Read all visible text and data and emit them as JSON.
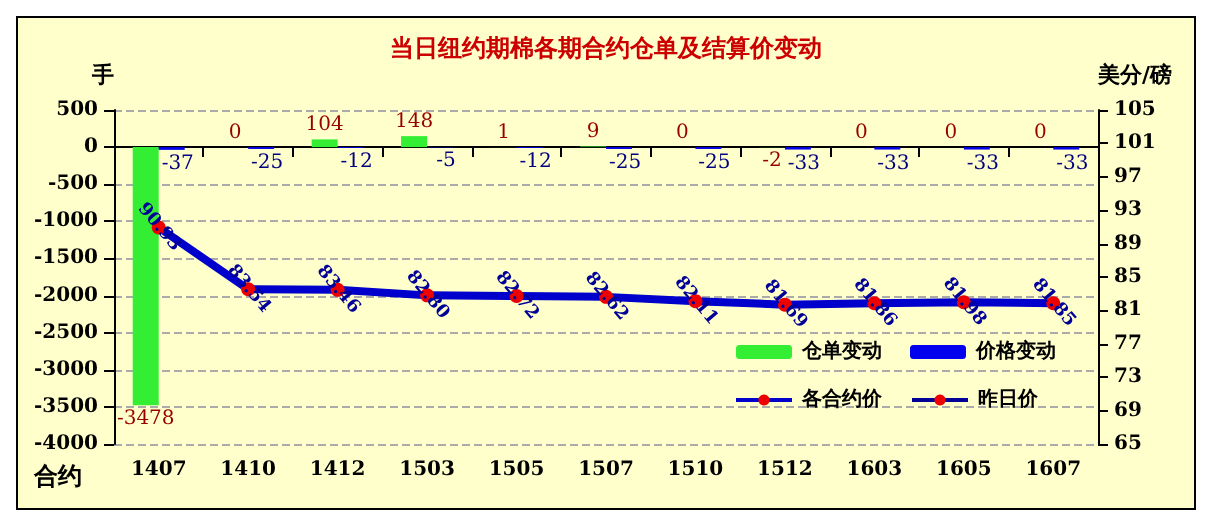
{
  "chart_data": {
    "type": "bar",
    "title": "当日纽约期棉各期合约仓单及结算价变动",
    "xlabel": "合约",
    "ylabel": "手",
    "y2label": "美分/磅",
    "categories": [
      "1407",
      "1410",
      "1412",
      "1503",
      "1505",
      "1507",
      "1510",
      "1512",
      "1603",
      "1605",
      "1607"
    ],
    "series": [
      {
        "name": "仓单变动",
        "color": "#33ee33",
        "values": [
          -3478,
          0,
          104,
          148,
          1,
          9,
          0,
          -2,
          0,
          0,
          0
        ],
        "value_labels": [
          "-3478",
          "0",
          "104",
          "148",
          "1",
          "9",
          "0",
          "-2",
          "0",
          "0",
          "0"
        ]
      },
      {
        "name": "价格变动",
        "color": "#0000ee",
        "values": [
          -37,
          -25,
          -12,
          -5,
          -12,
          -25,
          -25,
          -33,
          -33,
          -33,
          -33
        ],
        "value_labels": [
          "-37",
          "-25",
          "-12",
          "-5",
          "-12",
          "-25",
          "-25",
          "-33",
          "-33",
          "-33",
          "-33"
        ]
      },
      {
        "name": "各合约价",
        "type": "line",
        "axis": "y2",
        "color": "#0000cc",
        "marker": "circle",
        "values": [
          90.93,
          83.54,
          83.46,
          82.8,
          82.72,
          82.62,
          82.11,
          81.69,
          81.86,
          81.98,
          81.85
        ],
        "value_labels": [
          "90.93",
          "83.54",
          "83.46",
          "82.80",
          "82.72",
          "82.62",
          "82.11",
          "81.69",
          "81.86",
          "81.98",
          "81.85"
        ]
      },
      {
        "name": "昨日价",
        "type": "line",
        "axis": "y2",
        "color": "#000099",
        "marker": "circle",
        "values": [
          null,
          null,
          null,
          null,
          null,
          null,
          null,
          null,
          null,
          null,
          null
        ]
      }
    ],
    "ylim": [
      -4000,
      500
    ],
    "yticks": [
      -4000,
      -3500,
      -3000,
      -2500,
      -2000,
      -1500,
      -1000,
      -500,
      0,
      500
    ],
    "y2lim": [
      65,
      105
    ],
    "y2ticks": [
      65,
      69,
      73,
      77,
      81,
      85,
      89,
      93,
      97,
      101,
      105
    ],
    "grid": "y",
    "legend": "bottom right"
  }
}
